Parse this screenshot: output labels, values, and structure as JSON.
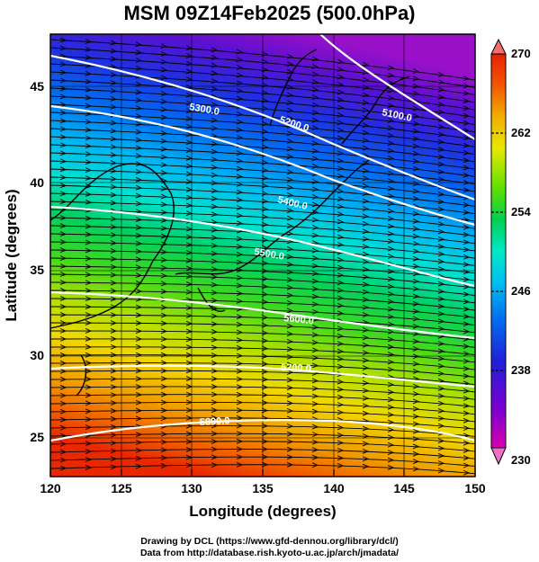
{
  "title": "MSM 09Z14Feb2025 (500.0hPa)",
  "x_axis": {
    "label": "Longitude (degrees)",
    "ticks": [
      "120",
      "125",
      "130",
      "135",
      "140",
      "145",
      "150"
    ],
    "range": [
      120,
      150
    ]
  },
  "y_axis": {
    "label": "Latitude  (degrees)",
    "ticks": [
      "25",
      "30",
      "35",
      "40",
      "45"
    ],
    "range": [
      23,
      48
    ]
  },
  "colorbar": {
    "ticks": [
      "270",
      "262",
      "254",
      "246",
      "238",
      "230"
    ],
    "range": [
      230,
      270
    ],
    "colors": [
      "#d800b0",
      "#7a00d0",
      "#2020d8",
      "#0070f0",
      "#00c0f0",
      "#00e8c8",
      "#00d050",
      "#60e000",
      "#e8e800",
      "#f0b000",
      "#f05800",
      "#e82000"
    ]
  },
  "contours": [
    {
      "label": "5100.0"
    },
    {
      "label": "5200.0"
    },
    {
      "label": "5300.0"
    },
    {
      "label": "5400.0"
    },
    {
      "label": "5500.0"
    },
    {
      "label": "5600.0"
    },
    {
      "label": "5700.0"
    },
    {
      "label": "5800.0"
    }
  ],
  "credits": {
    "line1": "Drawing by DCL (https://www.gfd-dennou.org/library/dcl/)",
    "line2": "Data from http://database.rish.kyoto-u.ac.jp/arch/jmadata/"
  }
}
